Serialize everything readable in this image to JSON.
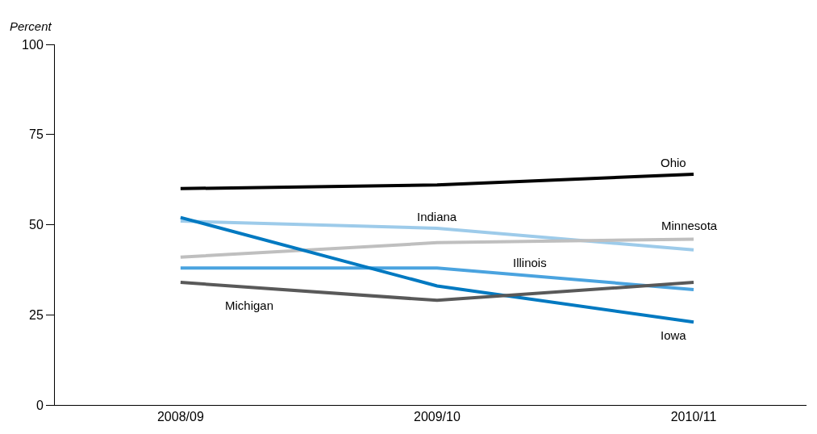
{
  "chart_data": {
    "type": "line",
    "ylabel": "Percent",
    "categories": [
      "2008/09",
      "2009/10",
      "2010/11"
    ],
    "series": [
      {
        "name": "Ohio",
        "color": "#000000",
        "values": [
          60,
          61,
          64
        ]
      },
      {
        "name": "Indiana",
        "color": "#9dcbea",
        "values": [
          51,
          49,
          43
        ]
      },
      {
        "name": "Minnesota",
        "color": "#bfbfbf",
        "values": [
          41,
          45,
          46
        ]
      },
      {
        "name": "Illinois",
        "color": "#4aa3df",
        "values": [
          38,
          38,
          32
        ]
      },
      {
        "name": "Iowa",
        "color": "#0079c1",
        "values": [
          52,
          33,
          23
        ]
      },
      {
        "name": "Michigan",
        "color": "#595959",
        "values": [
          34,
          29,
          34
        ]
      }
    ],
    "ylim": [
      0,
      100
    ],
    "yticks": [
      0,
      25,
      50,
      75,
      100
    ],
    "grid": false,
    "legend": false,
    "marker": "none",
    "line_style": "solid"
  }
}
